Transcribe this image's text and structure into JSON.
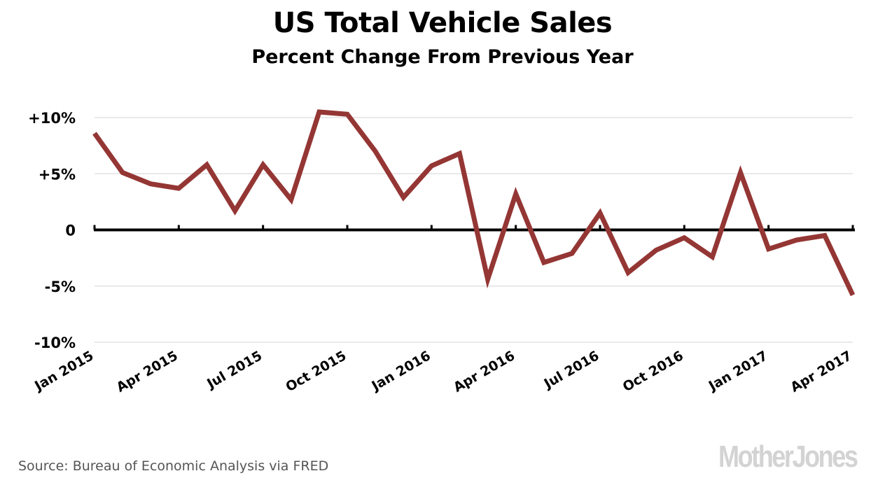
{
  "chart_data": {
    "type": "line",
    "title": "US Total Vehicle Sales",
    "subtitle": "Percent Change From Previous Year",
    "xlabel": "",
    "ylabel": "",
    "ylim": [
      -10,
      10
    ],
    "grid": true,
    "y_ticks": [
      {
        "value": 10,
        "label": "+10%"
      },
      {
        "value": 5,
        "label": "+5%"
      },
      {
        "value": 0,
        "label": "0"
      },
      {
        "value": -5,
        "label": "-5%"
      },
      {
        "value": -10,
        "label": "-10%"
      }
    ],
    "x_ticks": [
      {
        "index": 0,
        "label": "Jan 2015"
      },
      {
        "index": 3,
        "label": "Apr 2015"
      },
      {
        "index": 6,
        "label": "Jul 2015"
      },
      {
        "index": 9,
        "label": "Oct 2015"
      },
      {
        "index": 12,
        "label": "Jan 2016"
      },
      {
        "index": 15,
        "label": "Apr 2016"
      },
      {
        "index": 18,
        "label": "Jul 2016"
      },
      {
        "index": 21,
        "label": "Oct 2016"
      },
      {
        "index": 24,
        "label": "Jan 2017"
      },
      {
        "index": 27,
        "label": "Apr 2017"
      }
    ],
    "x": [
      "2015-01",
      "2015-02",
      "2015-03",
      "2015-04",
      "2015-05",
      "2015-06",
      "2015-07",
      "2015-08",
      "2015-09",
      "2015-10",
      "2015-11",
      "2015-12",
      "2016-01",
      "2016-02",
      "2016-03",
      "2016-04",
      "2016-05",
      "2016-06",
      "2016-07",
      "2016-08",
      "2016-09",
      "2016-10",
      "2016-11",
      "2016-12",
      "2017-01",
      "2017-02",
      "2017-03",
      "2017-04"
    ],
    "series": [
      {
        "name": "US Total Vehicle Sales, % change from previous year",
        "color": "#943634",
        "values": [
          8.6,
          5.1,
          4.1,
          3.7,
          5.8,
          1.7,
          5.8,
          2.7,
          10.5,
          10.3,
          7.0,
          2.9,
          5.7,
          6.8,
          -4.4,
          3.2,
          -2.9,
          -2.1,
          1.5,
          -3.8,
          -1.8,
          -0.7,
          -2.4,
          5.1,
          -1.7,
          -0.9,
          -0.5,
          -5.8
        ]
      }
    ]
  },
  "footer": {
    "source": "Source: Bureau of Economic Analysis via FRED",
    "logo": "MotherJones"
  }
}
